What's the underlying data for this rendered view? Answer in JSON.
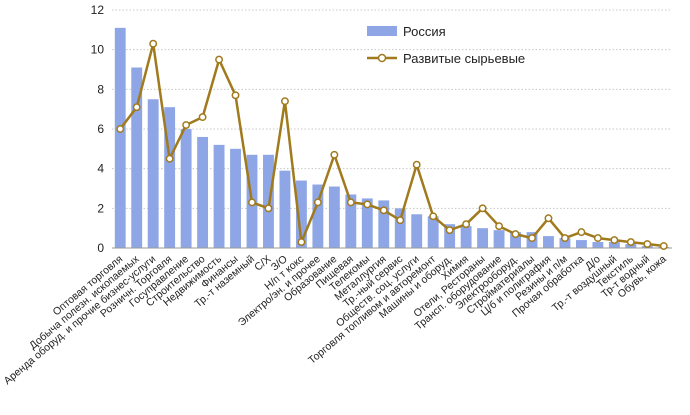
{
  "chart_data": {
    "type": "bar",
    "title": "",
    "xlabel": "",
    "ylabel": "",
    "ylim": [
      0,
      12
    ],
    "yticks": [
      0,
      2,
      4,
      6,
      8,
      10,
      12
    ],
    "grid": "horizontal dotted",
    "legend_position": "top-right",
    "categories": [
      "Оптовая торговля",
      "Добыча полезн. ископаемых",
      "Аренда оборуд. и прочие бизнес-услуги",
      "Розничн. Торговля",
      "Госуправление",
      "Строительство",
      "Недвижимость",
      "Финансы",
      "Тр.-т наземный",
      "С/Х",
      "З/О",
      "Н/п т кокс",
      "Электро/эн. и прочее",
      "Образование",
      "Пищевая",
      "Телекомы",
      "Металлургия",
      "Тр.-ный сервис",
      "Обществ. соц. услуги",
      "Торговля топливом и авторемонт",
      "Машины и оборуд.",
      "Химия",
      "Отели, Рестораны",
      "Трансп. оборудование",
      "Электрооборуд.",
      "Стройматериалы",
      "Ц/б и полиграфия",
      "Резины и п/м",
      "Прочая обработка",
      "Д/о",
      "Тр.-т воздушный",
      "Текстиль",
      "Тр-т водный",
      "Обувь, кожа"
    ],
    "series": [
      {
        "name": "Россия",
        "kind": "bar",
        "color": "#8ea6e6",
        "values": [
          11.1,
          9.1,
          7.5,
          7.1,
          6.0,
          5.6,
          5.2,
          5.0,
          4.7,
          4.7,
          3.9,
          3.4,
          3.2,
          3.1,
          2.7,
          2.5,
          2.4,
          2.0,
          1.7,
          1.6,
          1.2,
          1.1,
          1.0,
          0.9,
          0.8,
          0.8,
          0.6,
          0.5,
          0.4,
          0.3,
          0.3,
          0.2,
          0.1,
          0.05
        ]
      },
      {
        "name": "Развитые сырьевые",
        "kind": "line",
        "color": "#a07a1c",
        "values": [
          6.0,
          7.1,
          10.3,
          4.5,
          6.2,
          6.6,
          9.5,
          7.7,
          2.3,
          2.0,
          7.4,
          0.3,
          2.3,
          4.7,
          2.3,
          2.2,
          1.9,
          1.4,
          4.2,
          1.6,
          0.9,
          1.2,
          2.0,
          1.1,
          0.7,
          0.5,
          1.5,
          0.5,
          0.8,
          0.5,
          0.4,
          0.3,
          0.2,
          0.1
        ]
      }
    ]
  }
}
